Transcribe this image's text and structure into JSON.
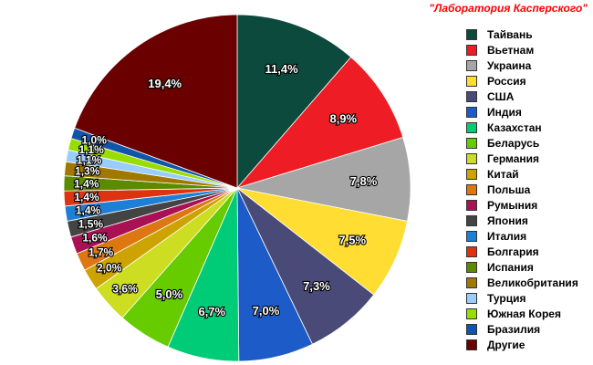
{
  "source_label": "\"Лаборатория Касперского\"",
  "chart_data": {
    "type": "pie",
    "slices": [
      {
        "label": "Тайвань",
        "value": 11.4,
        "display": "11,4%",
        "color": "#0b4a3c"
      },
      {
        "label": "Вьетнам",
        "value": 8.9,
        "display": "8,9%",
        "color": "#ee1c24"
      },
      {
        "label": "Украина",
        "value": 7.8,
        "display": "7,8%",
        "color": "#a6a6a6"
      },
      {
        "label": "Россия",
        "value": 7.5,
        "display": "7,5%",
        "color": "#ffdd33"
      },
      {
        "label": "США",
        "value": 7.3,
        "display": "7,3%",
        "color": "#4a4a78"
      },
      {
        "label": "Индия",
        "value": 7.0,
        "display": "7,0%",
        "color": "#1d5cc8"
      },
      {
        "label": "Казахстан",
        "value": 6.7,
        "display": "6,7%",
        "color": "#00cc77"
      },
      {
        "label": "Беларусь",
        "value": 5.0,
        "display": "5,0%",
        "color": "#66cc00"
      },
      {
        "label": "Германия",
        "value": 3.6,
        "display": "3,6%",
        "color": "#ccdd22"
      },
      {
        "label": "Китай",
        "value": 2.0,
        "display": "2,0%",
        "color": "#cca300"
      },
      {
        "label": "Польша",
        "value": 1.7,
        "display": "1,7%",
        "color": "#dd7711"
      },
      {
        "label": "Румыния",
        "value": 1.6,
        "display": "1,6%",
        "color": "#aa1155"
      },
      {
        "label": "Япония",
        "value": 1.5,
        "display": "1,5%",
        "color": "#444444"
      },
      {
        "label": "Италия",
        "value": 1.4,
        "display": "1,4%",
        "color": "#1e7fd6"
      },
      {
        "label": "Болгария",
        "value": 1.4,
        "display": "1,4%",
        "color": "#dd3311"
      },
      {
        "label": "Испания",
        "value": 1.4,
        "display": "1,4%",
        "color": "#5c8a00"
      },
      {
        "label": "Великобритания",
        "value": 1.3,
        "display": "1,3%",
        "color": "#a07800"
      },
      {
        "label": "Турция",
        "value": 1.1,
        "display": "1,1%",
        "color": "#99ccff"
      },
      {
        "label": "Южная Корея",
        "value": 1.1,
        "display": "1,1%",
        "color": "#99dd00"
      },
      {
        "label": "Бразилия",
        "value": 1.0,
        "display": "1,0%",
        "color": "#1155aa"
      },
      {
        "label": "Другие",
        "value": 19.4,
        "display": "19,4%",
        "color": "#6b0000"
      }
    ]
  }
}
